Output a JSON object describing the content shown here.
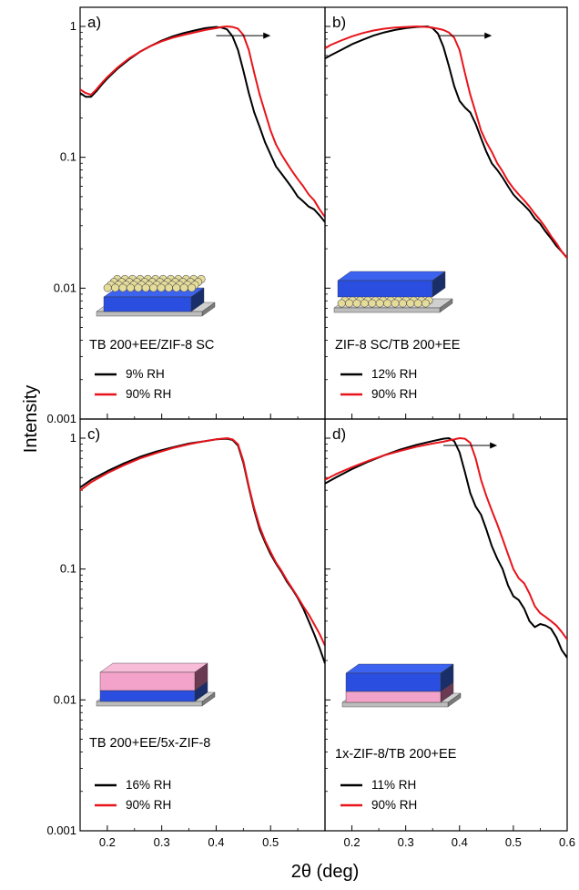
{
  "figure": {
    "ylabel": "Intensity",
    "xlabel": "2θ (deg)"
  },
  "colors": {
    "low_rh": "#000000",
    "high_rh": "#e8141b",
    "substrate": "#c8c8c8",
    "tb_layer": "#2a4fe0",
    "zif_layer": "#f3a3c9",
    "zif_particles": "#e6dc9a"
  },
  "chart_data": [
    {
      "type": "line",
      "panel": "a)",
      "sample": "TB 200+EE/ZIF-8 SC",
      "yscale": "log",
      "ylim": [
        0.001,
        1.4
      ],
      "xlim": [
        0.15,
        0.6
      ],
      "yticks": [
        0.001,
        0.01,
        0.1,
        1
      ],
      "yticklabels": [
        "0.001",
        "0.01",
        "0.1",
        "1"
      ],
      "xticks": [
        0.2,
        0.3,
        0.4,
        0.5
      ],
      "xticklabels": [
        "",
        "",
        "",
        ""
      ],
      "legend": "lower-left",
      "arrow": {
        "from": 0.4,
        "to": 0.5,
        "y": 0.85
      },
      "inset": "particles-on-tb",
      "series": [
        {
          "name": "9% RH",
          "color": "#000000",
          "x": [
            0.15,
            0.16,
            0.17,
            0.18,
            0.19,
            0.2,
            0.22,
            0.24,
            0.26,
            0.28,
            0.3,
            0.32,
            0.34,
            0.36,
            0.38,
            0.4,
            0.41,
            0.42,
            0.43,
            0.44,
            0.45,
            0.46,
            0.47,
            0.48,
            0.49,
            0.5,
            0.51,
            0.52,
            0.53,
            0.54,
            0.55,
            0.56,
            0.57,
            0.58,
            0.59,
            0.6
          ],
          "y": [
            0.31,
            0.29,
            0.29,
            0.32,
            0.36,
            0.4,
            0.48,
            0.56,
            0.64,
            0.71,
            0.78,
            0.84,
            0.89,
            0.93,
            0.97,
            0.99,
            0.98,
            0.95,
            0.84,
            0.66,
            0.46,
            0.31,
            0.22,
            0.17,
            0.13,
            0.105,
            0.085,
            0.075,
            0.066,
            0.058,
            0.05,
            0.046,
            0.042,
            0.04,
            0.036,
            0.032
          ]
        },
        {
          "name": "90% RH",
          "color": "#e8141b",
          "x": [
            0.15,
            0.16,
            0.17,
            0.18,
            0.19,
            0.2,
            0.22,
            0.24,
            0.26,
            0.28,
            0.3,
            0.32,
            0.34,
            0.36,
            0.38,
            0.4,
            0.41,
            0.42,
            0.43,
            0.44,
            0.45,
            0.46,
            0.47,
            0.48,
            0.49,
            0.5,
            0.51,
            0.52,
            0.53,
            0.54,
            0.55,
            0.56,
            0.57,
            0.58,
            0.59,
            0.6
          ],
          "y": [
            0.33,
            0.31,
            0.3,
            0.33,
            0.37,
            0.41,
            0.49,
            0.57,
            0.64,
            0.71,
            0.77,
            0.82,
            0.86,
            0.9,
            0.94,
            0.97,
            0.99,
            1.0,
            0.99,
            0.96,
            0.86,
            0.66,
            0.44,
            0.3,
            0.22,
            0.16,
            0.125,
            0.105,
            0.09,
            0.078,
            0.068,
            0.06,
            0.052,
            0.047,
            0.04,
            0.035
          ]
        }
      ]
    },
    {
      "type": "line",
      "panel": "b)",
      "sample": "ZIF-8 SC/TB 200+EE",
      "yscale": "log",
      "ylim": [
        0.001,
        1.4
      ],
      "xlim": [
        0.15,
        0.6
      ],
      "yticks": [
        0.001,
        0.01,
        0.1,
        1
      ],
      "yticklabels": [
        "",
        "",
        "",
        ""
      ],
      "xticks": [
        0.2,
        0.3,
        0.4,
        0.5
      ],
      "xticklabels": [
        "",
        "",
        "",
        ""
      ],
      "legend": "lower-left",
      "arrow": {
        "from": 0.36,
        "to": 0.46,
        "y": 0.85
      },
      "inset": "tb-on-particles",
      "series": [
        {
          "name": "12% RH",
          "color": "#000000",
          "x": [
            0.15,
            0.16,
            0.18,
            0.2,
            0.22,
            0.24,
            0.26,
            0.28,
            0.3,
            0.32,
            0.34,
            0.35,
            0.36,
            0.37,
            0.38,
            0.39,
            0.4,
            0.41,
            0.42,
            0.43,
            0.44,
            0.45,
            0.46,
            0.47,
            0.48,
            0.49,
            0.5,
            0.51,
            0.52,
            0.53,
            0.54,
            0.55,
            0.56,
            0.57,
            0.58,
            0.59,
            0.6
          ],
          "y": [
            0.57,
            0.6,
            0.66,
            0.73,
            0.79,
            0.85,
            0.9,
            0.94,
            0.97,
            0.99,
            1.0,
            0.97,
            0.88,
            0.7,
            0.5,
            0.35,
            0.27,
            0.24,
            0.22,
            0.18,
            0.14,
            0.11,
            0.09,
            0.08,
            0.07,
            0.06,
            0.052,
            0.047,
            0.043,
            0.039,
            0.034,
            0.031,
            0.027,
            0.024,
            0.021,
            0.019,
            0.017
          ]
        },
        {
          "name": "90% RH",
          "color": "#e8141b",
          "x": [
            0.15,
            0.16,
            0.18,
            0.2,
            0.22,
            0.24,
            0.26,
            0.28,
            0.3,
            0.32,
            0.34,
            0.35,
            0.36,
            0.37,
            0.38,
            0.39,
            0.4,
            0.41,
            0.42,
            0.43,
            0.44,
            0.45,
            0.46,
            0.47,
            0.48,
            0.49,
            0.5,
            0.51,
            0.52,
            0.53,
            0.54,
            0.55,
            0.56,
            0.57,
            0.58,
            0.59,
            0.6
          ],
          "y": [
            0.68,
            0.72,
            0.78,
            0.84,
            0.89,
            0.93,
            0.96,
            0.98,
            0.99,
            1.0,
            0.99,
            0.98,
            0.96,
            0.94,
            0.9,
            0.82,
            0.66,
            0.44,
            0.3,
            0.22,
            0.16,
            0.13,
            0.11,
            0.09,
            0.078,
            0.066,
            0.058,
            0.052,
            0.047,
            0.042,
            0.037,
            0.033,
            0.029,
            0.025,
            0.022,
            0.019,
            0.017
          ]
        }
      ]
    },
    {
      "type": "line",
      "panel": "c)",
      "sample": "TB 200+EE/5x-ZIF-8",
      "yscale": "log",
      "ylim": [
        0.001,
        1.4
      ],
      "xlim": [
        0.15,
        0.6
      ],
      "yticks": [
        0.001,
        0.01,
        0.1,
        1
      ],
      "yticklabels": [
        "0.001",
        "0.01",
        "0.1",
        "1"
      ],
      "xticks": [
        0.2,
        0.3,
        0.4,
        0.5
      ],
      "xticklabels": [
        "0.2",
        "0.3",
        "0.4",
        "0.5"
      ],
      "legend": "lower-left",
      "inset": "zif-on-tb",
      "series": [
        {
          "name": "16% RH",
          "color": "#000000",
          "x": [
            0.15,
            0.17,
            0.2,
            0.23,
            0.26,
            0.29,
            0.32,
            0.35,
            0.38,
            0.4,
            0.42,
            0.43,
            0.44,
            0.45,
            0.46,
            0.47,
            0.48,
            0.49,
            0.5,
            0.51,
            0.52,
            0.53,
            0.54,
            0.55,
            0.56,
            0.57,
            0.58,
            0.59,
            0.6
          ],
          "y": [
            0.42,
            0.48,
            0.56,
            0.64,
            0.72,
            0.79,
            0.85,
            0.91,
            0.95,
            0.98,
            0.99,
            0.97,
            0.88,
            0.65,
            0.42,
            0.28,
            0.2,
            0.16,
            0.13,
            0.11,
            0.095,
            0.08,
            0.07,
            0.06,
            0.05,
            0.04,
            0.032,
            0.025,
            0.019
          ]
        },
        {
          "name": "90% RH",
          "color": "#e8141b",
          "x": [
            0.15,
            0.17,
            0.2,
            0.23,
            0.26,
            0.29,
            0.32,
            0.35,
            0.38,
            0.4,
            0.42,
            0.43,
            0.44,
            0.45,
            0.46,
            0.47,
            0.48,
            0.49,
            0.5,
            0.51,
            0.52,
            0.53,
            0.54,
            0.55,
            0.56,
            0.57,
            0.58,
            0.59,
            0.6
          ],
          "y": [
            0.4,
            0.46,
            0.54,
            0.62,
            0.7,
            0.77,
            0.84,
            0.9,
            0.95,
            0.98,
            1.0,
            0.98,
            0.9,
            0.67,
            0.43,
            0.29,
            0.21,
            0.165,
            0.135,
            0.112,
            0.097,
            0.082,
            0.071,
            0.061,
            0.052,
            0.045,
            0.038,
            0.032,
            0.026
          ]
        }
      ]
    },
    {
      "type": "line",
      "panel": "d)",
      "sample": "1x-ZIF-8/TB 200+EE",
      "yscale": "log",
      "ylim": [
        0.001,
        1.4
      ],
      "xlim": [
        0.15,
        0.6
      ],
      "yticks": [
        0.001,
        0.01,
        0.1,
        1
      ],
      "yticklabels": [
        "",
        "",
        "",
        ""
      ],
      "xticks": [
        0.2,
        0.3,
        0.4,
        0.5,
        0.6
      ],
      "xticklabels": [
        "0.2",
        "0.3",
        "0.4",
        "0.5",
        "0.6"
      ],
      "legend": "lower-left",
      "arrow": {
        "from": 0.37,
        "to": 0.47,
        "y": 0.88
      },
      "inset": "tb-on-zif",
      "series": [
        {
          "name": "11% RH",
          "color": "#000000",
          "x": [
            0.15,
            0.17,
            0.2,
            0.23,
            0.26,
            0.29,
            0.32,
            0.35,
            0.37,
            0.38,
            0.39,
            0.4,
            0.41,
            0.42,
            0.43,
            0.44,
            0.45,
            0.46,
            0.47,
            0.48,
            0.49,
            0.5,
            0.51,
            0.52,
            0.53,
            0.54,
            0.55,
            0.56,
            0.57,
            0.58,
            0.59,
            0.6
          ],
          "y": [
            0.45,
            0.5,
            0.58,
            0.66,
            0.74,
            0.82,
            0.89,
            0.95,
            0.99,
            1.0,
            0.95,
            0.78,
            0.55,
            0.38,
            0.3,
            0.26,
            0.2,
            0.15,
            0.12,
            0.1,
            0.075,
            0.062,
            0.058,
            0.05,
            0.04,
            0.036,
            0.038,
            0.037,
            0.035,
            0.03,
            0.024,
            0.021
          ]
        },
        {
          "name": "90% RH",
          "color": "#e8141b",
          "x": [
            0.15,
            0.17,
            0.2,
            0.23,
            0.26,
            0.29,
            0.32,
            0.35,
            0.37,
            0.38,
            0.39,
            0.4,
            0.41,
            0.42,
            0.43,
            0.44,
            0.45,
            0.46,
            0.47,
            0.48,
            0.49,
            0.5,
            0.51,
            0.52,
            0.53,
            0.54,
            0.55,
            0.56,
            0.57,
            0.58,
            0.59,
            0.6
          ],
          "y": [
            0.48,
            0.53,
            0.6,
            0.67,
            0.74,
            0.8,
            0.86,
            0.91,
            0.94,
            0.96,
            0.98,
            1.0,
            0.99,
            0.92,
            0.7,
            0.48,
            0.36,
            0.28,
            0.22,
            0.17,
            0.13,
            0.1,
            0.085,
            0.078,
            0.065,
            0.052,
            0.046,
            0.043,
            0.04,
            0.037,
            0.033,
            0.029
          ]
        }
      ]
    }
  ]
}
